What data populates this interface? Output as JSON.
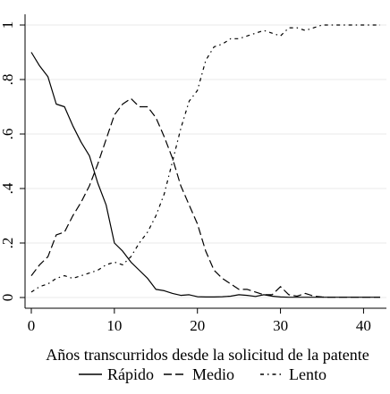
{
  "chart_data": {
    "type": "line",
    "xlabel": "Años transcurridos desde la solicitud de la patente",
    "ylabel": "",
    "xlim": [
      0,
      42
    ],
    "ylim": [
      0,
      1
    ],
    "grid": "horizontal",
    "legend_placement": "bottom",
    "x_ticks": [
      {
        "value": 0,
        "label": "0"
      },
      {
        "value": 10,
        "label": "10"
      },
      {
        "value": 20,
        "label": "20"
      },
      {
        "value": 30,
        "label": "30"
      },
      {
        "value": 40,
        "label": "40"
      }
    ],
    "y_ticks": [
      {
        "value": 0,
        "label": "0"
      },
      {
        "value": 0.2,
        "label": ".2"
      },
      {
        "value": 0.4,
        "label": ".4"
      },
      {
        "value": 0.6,
        "label": ".6"
      },
      {
        "value": 0.8,
        "label": ".8"
      },
      {
        "value": 1,
        "label": "1"
      }
    ],
    "series": [
      {
        "name": "Rápido",
        "dash": "solid",
        "points": [
          [
            0,
            0.9
          ],
          [
            1,
            0.85
          ],
          [
            2,
            0.81
          ],
          [
            3,
            0.71
          ],
          [
            4,
            0.7
          ],
          [
            5,
            0.63
          ],
          [
            6,
            0.57
          ],
          [
            7,
            0.52
          ],
          [
            8,
            0.42
          ],
          [
            9,
            0.34
          ],
          [
            10,
            0.2
          ],
          [
            11,
            0.17
          ],
          [
            12,
            0.13
          ],
          [
            13,
            0.1
          ],
          [
            14,
            0.07
          ],
          [
            15,
            0.03
          ],
          [
            16,
            0.025
          ],
          [
            17,
            0.015
          ],
          [
            18,
            0.008
          ],
          [
            19,
            0.01
          ],
          [
            20,
            0.003
          ],
          [
            21,
            0.002
          ],
          [
            22,
            0.002
          ],
          [
            23,
            0.003
          ],
          [
            24,
            0.005
          ],
          [
            25,
            0.01
          ],
          [
            26,
            0.008
          ],
          [
            27,
            0.004
          ],
          [
            28,
            0.01
          ],
          [
            29,
            0.005
          ],
          [
            30,
            0.002
          ],
          [
            31,
            0.001
          ],
          [
            32,
            0.001
          ],
          [
            33,
            0.001
          ],
          [
            34,
            0.001
          ],
          [
            35,
            0.001
          ],
          [
            36,
            0.001
          ],
          [
            37,
            0.001
          ],
          [
            38,
            0.001
          ],
          [
            39,
            0.001
          ],
          [
            40,
            0.001
          ],
          [
            41,
            0.001
          ],
          [
            42,
            0.001
          ]
        ]
      },
      {
        "name": "Medio",
        "dash": "dashed",
        "points": [
          [
            0,
            0.08
          ],
          [
            1,
            0.12
          ],
          [
            2,
            0.15
          ],
          [
            3,
            0.23
          ],
          [
            4,
            0.24
          ],
          [
            5,
            0.3
          ],
          [
            6,
            0.35
          ],
          [
            7,
            0.41
          ],
          [
            8,
            0.49
          ],
          [
            9,
            0.58
          ],
          [
            10,
            0.67
          ],
          [
            11,
            0.71
          ],
          [
            12,
            0.73
          ],
          [
            13,
            0.7
          ],
          [
            14,
            0.7
          ],
          [
            15,
            0.66
          ],
          [
            16,
            0.59
          ],
          [
            17,
            0.51
          ],
          [
            18,
            0.41
          ],
          [
            19,
            0.34
          ],
          [
            20,
            0.27
          ],
          [
            21,
            0.17
          ],
          [
            22,
            0.1
          ],
          [
            23,
            0.07
          ],
          [
            24,
            0.05
          ],
          [
            25,
            0.03
          ],
          [
            26,
            0.03
          ],
          [
            27,
            0.02
          ],
          [
            28,
            0.01
          ],
          [
            29,
            0.01
          ],
          [
            30,
            0.04
          ],
          [
            31,
            0.01
          ],
          [
            32,
            0.005
          ],
          [
            33,
            0.015
          ],
          [
            34,
            0.005
          ],
          [
            35,
            0.002
          ],
          [
            36,
            0.001
          ],
          [
            37,
            0.001
          ],
          [
            38,
            0.001
          ],
          [
            39,
            0.001
          ],
          [
            40,
            0.001
          ],
          [
            41,
            0.001
          ],
          [
            42,
            0.001
          ]
        ]
      },
      {
        "name": "Lento",
        "dash": "dashdot",
        "points": [
          [
            0,
            0.02
          ],
          [
            1,
            0.04
          ],
          [
            2,
            0.05
          ],
          [
            3,
            0.07
          ],
          [
            4,
            0.08
          ],
          [
            5,
            0.07
          ],
          [
            6,
            0.08
          ],
          [
            7,
            0.09
          ],
          [
            8,
            0.1
          ],
          [
            9,
            0.12
          ],
          [
            10,
            0.13
          ],
          [
            11,
            0.12
          ],
          [
            12,
            0.15
          ],
          [
            13,
            0.2
          ],
          [
            14,
            0.24
          ],
          [
            15,
            0.3
          ],
          [
            16,
            0.38
          ],
          [
            17,
            0.5
          ],
          [
            18,
            0.62
          ],
          [
            19,
            0.72
          ],
          [
            20,
            0.76
          ],
          [
            21,
            0.87
          ],
          [
            22,
            0.92
          ],
          [
            23,
            0.93
          ],
          [
            24,
            0.95
          ],
          [
            25,
            0.95
          ],
          [
            26,
            0.96
          ],
          [
            27,
            0.97
          ],
          [
            28,
            0.98
          ],
          [
            29,
            0.97
          ],
          [
            30,
            0.96
          ],
          [
            31,
            0.99
          ],
          [
            32,
            0.99
          ],
          [
            33,
            0.98
          ],
          [
            34,
            0.99
          ],
          [
            35,
            1.0
          ],
          [
            36,
            1.0
          ],
          [
            37,
            1.0
          ],
          [
            38,
            1.0
          ],
          [
            39,
            1.0
          ],
          [
            40,
            1.0
          ],
          [
            41,
            1.0
          ],
          [
            42,
            1.0
          ]
        ]
      }
    ]
  }
}
